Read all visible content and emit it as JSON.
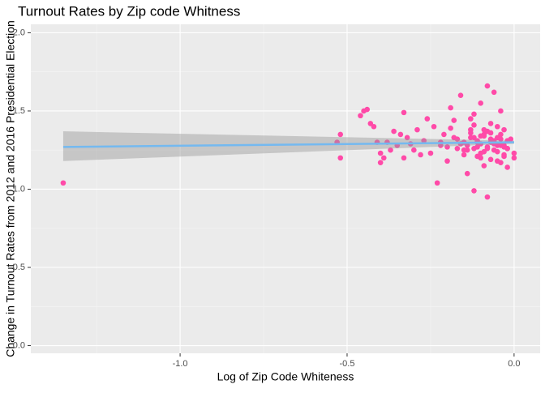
{
  "chart_data": {
    "type": "scatter",
    "title": "Turnout Rates by Zip code Whitness",
    "x_label": "Log of Zip Code Whiteness",
    "y_label": "Change in Turnout Rates from 2012 and 2016 Presidential Election",
    "color": "#ff4aa8",
    "fit_color": "#74b9f0",
    "xlim": [
      -1.447,
      0.078
    ],
    "ylim": [
      -0.049,
      2.054
    ],
    "xticks": [
      {
        "value": -1.0,
        "label": "-1.0"
      },
      {
        "value": -0.5,
        "label": "-0.5"
      },
      {
        "value": 0.0,
        "label": "0.0"
      }
    ],
    "yticks": [
      {
        "value": 0.0,
        "label": "0.0"
      },
      0.5,
      {
        "value": 1.0,
        "label": "1.0"
      },
      1.5,
      {
        "value": 2.0,
        "label": "2.0"
      }
    ],
    "minor_xticks": [
      -1.25,
      -0.75,
      -0.25
    ],
    "minor_yticks": [
      0.25,
      0.75,
      1.25,
      1.75
    ],
    "grid": true,
    "fit_x": [
      -1.35,
      0.0
    ],
    "fit_y": [
      1.27,
      1.3
    ],
    "band_lower": [
      1.18,
      1.29
    ],
    "band_upper": [
      1.37,
      1.31
    ],
    "x": [
      -1.35,
      -0.52,
      -0.52,
      -0.53,
      -0.45,
      -0.46,
      -0.44,
      -0.43,
      -0.42,
      -0.41,
      -0.4,
      -0.4,
      -0.39,
      -0.38,
      -0.37,
      -0.36,
      -0.35,
      -0.34,
      -0.33,
      -0.33,
      -0.32,
      -0.31,
      -0.3,
      -0.29,
      -0.28,
      -0.27,
      -0.26,
      -0.25,
      -0.24,
      -0.23,
      -0.22,
      -0.21,
      -0.2,
      -0.19,
      -0.18,
      -0.17,
      -0.16,
      -0.15,
      -0.14,
      -0.13,
      -0.12,
      -0.12,
      -0.11,
      -0.1,
      -0.1,
      -0.09,
      -0.09,
      -0.08,
      -0.08,
      -0.07,
      -0.07,
      -0.06,
      -0.06,
      -0.05,
      -0.05,
      -0.04,
      -0.04,
      -0.03,
      -0.03,
      -0.02,
      -0.02,
      -0.01,
      0.0,
      0.0,
      -0.15,
      -0.14,
      -0.13,
      -0.12,
      -0.11,
      -0.1,
      -0.09,
      -0.08,
      -0.07,
      -0.06,
      -0.05,
      -0.04,
      -0.03,
      -0.02,
      -0.15,
      -0.13,
      -0.11,
      -0.09,
      -0.07,
      -0.05,
      -0.03,
      -0.14,
      -0.12,
      -0.1,
      -0.08,
      -0.06,
      -0.04,
      -0.02,
      -0.13,
      -0.11,
      -0.09,
      -0.07,
      -0.05,
      -0.03,
      -0.16,
      -0.1,
      -0.08,
      -0.06,
      -0.04,
      -0.12,
      -0.18,
      -0.2,
      -0.22,
      -0.17,
      -0.19
    ],
    "y": [
      1.04,
      1.2,
      1.35,
      1.3,
      1.5,
      1.47,
      1.51,
      1.42,
      1.4,
      1.3,
      1.17,
      1.23,
      1.2,
      1.3,
      1.25,
      1.37,
      1.28,
      1.35,
      1.49,
      1.2,
      1.33,
      1.29,
      1.25,
      1.38,
      1.22,
      1.31,
      1.45,
      1.23,
      1.4,
      1.04,
      1.28,
      1.35,
      1.18,
      1.52,
      1.44,
      1.32,
      1.6,
      1.25,
      1.1,
      1.38,
      1.48,
      0.99,
      1.27,
      1.55,
      1.2,
      1.35,
      1.15,
      0.95,
      1.66,
      1.3,
      1.42,
      1.25,
      1.62,
      1.33,
      1.18,
      1.28,
      1.5,
      1.22,
      1.38,
      1.26,
      1.14,
      1.32,
      1.2,
      1.23,
      1.3,
      1.28,
      1.33,
      1.26,
      1.31,
      1.29,
      1.34,
      1.27,
      1.32,
      1.3,
      1.24,
      1.35,
      1.28,
      1.31,
      1.22,
      1.36,
      1.21,
      1.38,
      1.19,
      1.4,
      1.27,
      1.25,
      1.33,
      1.23,
      1.37,
      1.29,
      1.32,
      1.26,
      1.45,
      1.3,
      1.24,
      1.36,
      1.28,
      1.21,
      1.29,
      1.34,
      1.26,
      1.31,
      1.17,
      1.41,
      1.33,
      1.27,
      1.3,
      1.26,
      1.39
    ]
  }
}
